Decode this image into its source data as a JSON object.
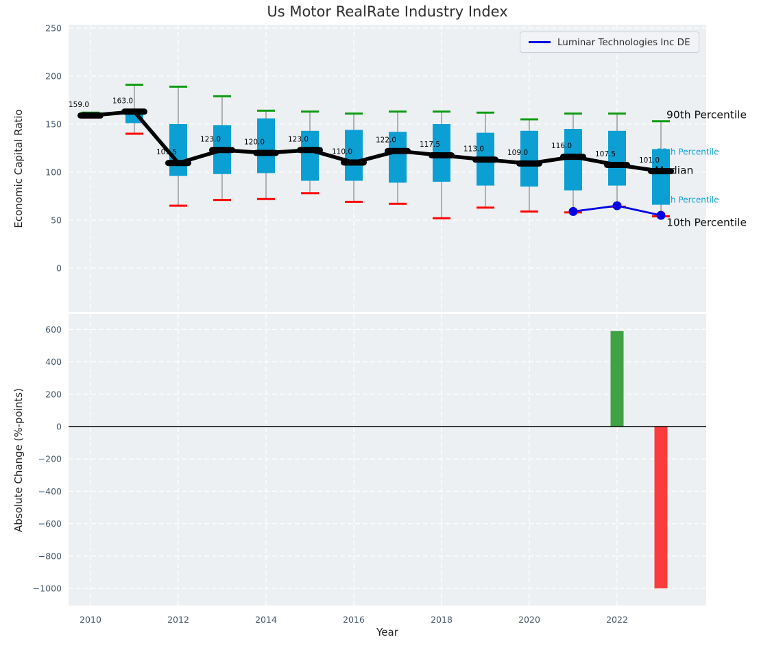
{
  "title": "Us Motor RealRate Industry Index",
  "legend": {
    "label": "Luminar Technologies Inc DE"
  },
  "axes": {
    "xlabel": "Year",
    "xticks": [
      2010,
      2012,
      2014,
      2016,
      2018,
      2020,
      2022
    ],
    "top": {
      "ylabel": "Economic Capital Ratio",
      "yticks": [
        250,
        200,
        150,
        100,
        50,
        0
      ]
    },
    "bottom": {
      "ylabel": "Absolute Change (%-points)",
      "yticks": [
        600,
        400,
        200,
        0,
        -200,
        -400,
        -600,
        -800,
        -1000
      ]
    }
  },
  "colors": {
    "plot_bg": "#ecf0f2",
    "grid": "#ffffff",
    "box_fill": "#0c9fd4",
    "whisker": "#8c8c8c",
    "cap_high": "#0e9b12",
    "cap_low": "#ff0000",
    "median": "#000000",
    "company_line": "#0000e6",
    "bar_positive": "#3fa245",
    "bar_negative": "#fa3c3c",
    "tick_text": "#425468",
    "annotation_text": "#111111"
  },
  "chart_data": [
    {
      "type": "boxplot+line",
      "title": "Us Motor RealRate Industry Index",
      "ylabel": "Economic Capital Ratio",
      "xlabel": "Year",
      "ylim": [
        -45,
        255
      ],
      "xlim": [
        2009.5,
        2024
      ],
      "grid": true,
      "years": [
        2010,
        2011,
        2012,
        2013,
        2014,
        2015,
        2016,
        2017,
        2018,
        2019,
        2020,
        2021,
        2022,
        2023
      ],
      "median": [
        159,
        163,
        109.5,
        123,
        120,
        123,
        110,
        122,
        117.5,
        113,
        109,
        116,
        107.5,
        101
      ],
      "median_labels": [
        "159.0",
        "163.0",
        "109.5",
        "123.0",
        "120.0",
        "123.0",
        "110.0",
        "122.0",
        "117.5",
        "113.0",
        "109.0",
        "116.0",
        "107.5",
        "101.0"
      ],
      "p90": [
        162,
        191,
        189,
        179,
        164,
        163,
        161,
        163,
        163,
        162,
        155,
        161,
        161,
        153
      ],
      "p75": [
        160,
        166,
        150,
        149,
        156,
        143,
        144,
        142,
        150,
        141,
        143,
        145,
        143,
        124
      ],
      "p25": [
        158,
        151,
        96,
        98,
        99,
        91,
        91,
        89,
        90,
        86,
        85,
        81,
        86,
        66
      ],
      "p10": [
        157,
        140,
        65,
        71,
        72,
        78,
        69,
        67,
        52,
        63,
        59,
        58,
        64,
        54
      ],
      "company_series": {
        "name": "Luminar Technologies Inc DE",
        "years": [
          2021,
          2022,
          2023
        ],
        "values": [
          59,
          65,
          55
        ]
      },
      "percentile_labels": [
        {
          "text": "90th Percentile",
          "color": "#111111",
          "size": "large",
          "anchor_value": 160
        },
        {
          "text": "75th Percentile",
          "color": "#0c9fd4",
          "size": "small",
          "anchor_value": 121
        },
        {
          "text": "Median",
          "color": "#111111",
          "size": "large",
          "anchor_value": 102
        },
        {
          "text": "25th Percentile",
          "color": "#0c9fd4",
          "size": "small",
          "anchor_value": 71
        },
        {
          "text": "10th Percentile",
          "color": "#111111",
          "size": "large",
          "anchor_value": 48
        }
      ]
    },
    {
      "type": "bar",
      "ylabel": "Absolute Change (%-points)",
      "xlabel": "Year",
      "ylim": [
        -1100,
        700
      ],
      "grid": true,
      "categories": [
        2022,
        2023
      ],
      "values": [
        590,
        -1000
      ],
      "bar_colors": [
        "#3fa245",
        "#fa3c3c"
      ],
      "zero_line": 0
    }
  ]
}
